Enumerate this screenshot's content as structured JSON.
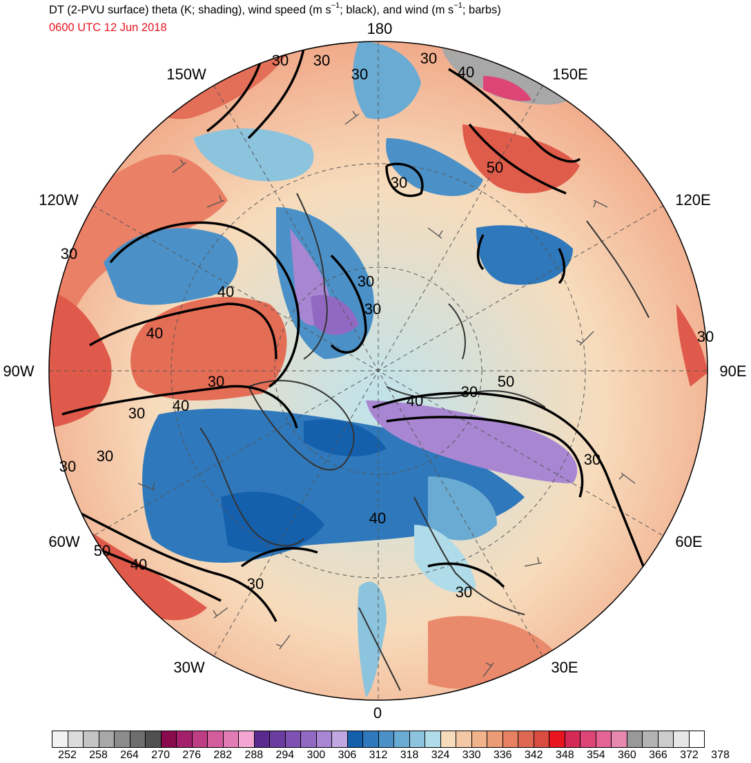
{
  "title": {
    "part1": "DT (2-PVU surface) theta (K; shading), wind speed (m s",
    "exp1": "−1",
    "part2": "; black), and wind (m s",
    "exp2": "−1",
    "part3": "; barbs)"
  },
  "valid_time": "0600 UTC 12 Jun 2018",
  "longitude_labels": {
    "lon_180": "180",
    "lon_150w": "150W",
    "lon_150e": "150E",
    "lon_120w": "120W",
    "lon_120e": "120E",
    "lon_90w": "90W",
    "lon_90e": "90E",
    "lon_60w": "60W",
    "lon_60e": "60E",
    "lon_30w": "30W",
    "lon_30e": "30E",
    "lon_0": "0"
  },
  "contour_labels": [
    "30",
    "30",
    "30",
    "30",
    "40",
    "50",
    "30",
    "30",
    "30",
    "40",
    "30",
    "40",
    "30",
    "30",
    "50",
    "30",
    "40",
    "30",
    "40",
    "30",
    "30",
    "30",
    "40",
    "50",
    "40",
    "30",
    "30"
  ],
  "colorbar": {
    "unit": "K",
    "colors": [
      "#f2f2f2",
      "#dcdcdc",
      "#c4c4c4",
      "#a8a8a8",
      "#8c8c8c",
      "#6e6e6e",
      "#505050",
      "#8a0a4e",
      "#a5206a",
      "#bf3d85",
      "#d35c9d",
      "#e17db4",
      "#f2a6d1",
      "#5a2a8e",
      "#6b3da0",
      "#7d52b2",
      "#9169c2",
      "#a886d2",
      "#c1a7e2",
      "#1560ad",
      "#2f78bb",
      "#4b91c8",
      "#6aabd3",
      "#8cc3dd",
      "#b0dbe8",
      "#f7dcbc",
      "#f4c8a4",
      "#f0b38c",
      "#eb9b76",
      "#e68263",
      "#df6852",
      "#d94c42",
      "#e8141e",
      "#d52a55",
      "#dd4576",
      "#e46595",
      "#e688b0",
      "#999999",
      "#b3b3b3",
      "#cccccc",
      "#e6e6e6",
      "#ffffff"
    ],
    "tick_labels": [
      "252",
      "258",
      "264",
      "270",
      "276",
      "282",
      "288",
      "294",
      "300",
      "306",
      "312",
      "318",
      "324",
      "330",
      "336",
      "342",
      "348",
      "354",
      "360",
      "366",
      "372",
      "378"
    ]
  },
  "map": {
    "projection": "north polar stereographic",
    "center_lon_bottom": "0",
    "contour_color": "#000000",
    "grid_style": "dashed",
    "coastline_color": "#333333",
    "barb_color": "#555555"
  }
}
